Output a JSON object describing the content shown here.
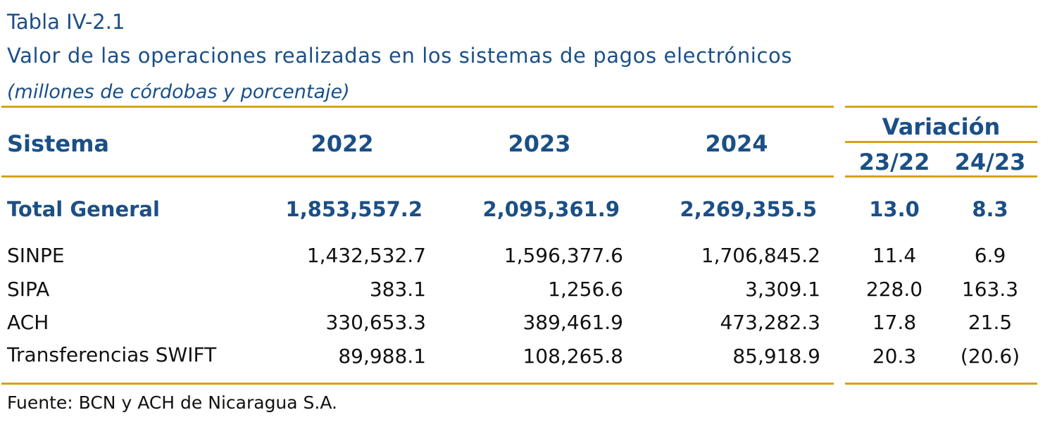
{
  "header": {
    "label": "Tabla IV-2.1",
    "title": "Valor de las operaciones realizadas en los sistemas de pagos electrónicos",
    "subtitle": "(millones de córdobas y porcentaje)"
  },
  "columns": {
    "sistema": "Sistema",
    "years": [
      "2022",
      "2023",
      "2024"
    ],
    "variation": "Variación",
    "var_sub": [
      "23/22",
      "24/23"
    ]
  },
  "total": {
    "name": "Total General",
    "values": [
      "1,853,557.2",
      "2,095,361.9",
      "2,269,355.5"
    ],
    "var": [
      "13.0",
      "8.3"
    ]
  },
  "rows": [
    {
      "name": "SINPE",
      "values": [
        "1,432,532.7",
        "1,596,377.6",
        "1,706,845.2"
      ],
      "var": [
        "11.4",
        "6.9"
      ]
    },
    {
      "name": "SIPA",
      "values": [
        "383.1",
        "1,256.6",
        "3,309.1"
      ],
      "var": [
        "228.0",
        "163.3"
      ]
    },
    {
      "name": "ACH",
      "values": [
        "330,653.3",
        "389,461.9",
        "473,282.3"
      ],
      "var": [
        "17.8",
        "21.5"
      ]
    },
    {
      "name": "Transferencias SWIFT",
      "values": [
        "89,988.1",
        "108,265.8",
        "85,918.9"
      ],
      "var": [
        "20.3",
        "(20.6)"
      ]
    }
  ],
  "source": "Fuente: BCN y ACH de Nicaragua S.A.",
  "colors": {
    "accent": "#1b4f86",
    "rule": "#d4a21b",
    "text": "#111111"
  }
}
